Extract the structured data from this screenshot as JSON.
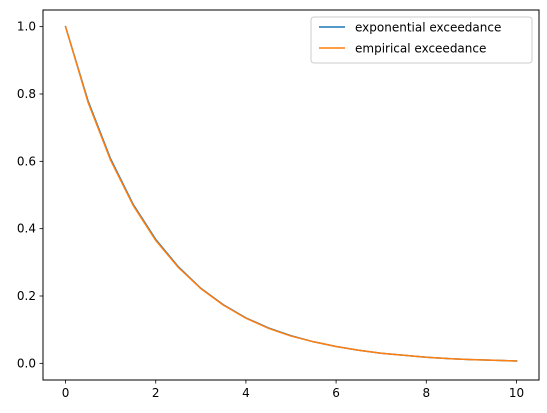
{
  "chart_data": {
    "type": "line",
    "xlim": [
      -0.5,
      10.5
    ],
    "ylim": [
      -0.0495,
      1.0495
    ],
    "x_ticks": [
      0,
      2,
      4,
      6,
      8,
      10
    ],
    "x_tick_labels": [
      "0",
      "2",
      "4",
      "6",
      "8",
      "10"
    ],
    "y_ticks": [
      0.0,
      0.2,
      0.4,
      0.6,
      0.8,
      1.0
    ],
    "y_tick_labels": [
      "0.0",
      "0.2",
      "0.4",
      "0.6",
      "0.8",
      "1.0"
    ],
    "grid": false,
    "legend_position": "upper right",
    "x": [
      0,
      0.5,
      1,
      1.5,
      2,
      2.5,
      3,
      3.5,
      4,
      4.5,
      5,
      5.5,
      6,
      6.5,
      7,
      7.5,
      8,
      8.5,
      9,
      9.5,
      10
    ],
    "series": [
      {
        "name": "exponential exceedance",
        "color": "#1f77b4",
        "values": [
          1.0,
          0.779,
          0.607,
          0.472,
          0.368,
          0.287,
          0.223,
          0.174,
          0.135,
          0.105,
          0.082,
          0.064,
          0.05,
          0.039,
          0.03,
          0.024,
          0.018,
          0.014,
          0.011,
          0.009,
          0.007
        ]
      },
      {
        "name": "empirical exceedance",
        "color": "#ff7f0e",
        "values": [
          1.0,
          0.775,
          0.603,
          0.469,
          0.365,
          0.285,
          0.222,
          0.173,
          0.134,
          0.104,
          0.081,
          0.064,
          0.05,
          0.039,
          0.03,
          0.024,
          0.018,
          0.014,
          0.011,
          0.009,
          0.007
        ]
      }
    ]
  }
}
